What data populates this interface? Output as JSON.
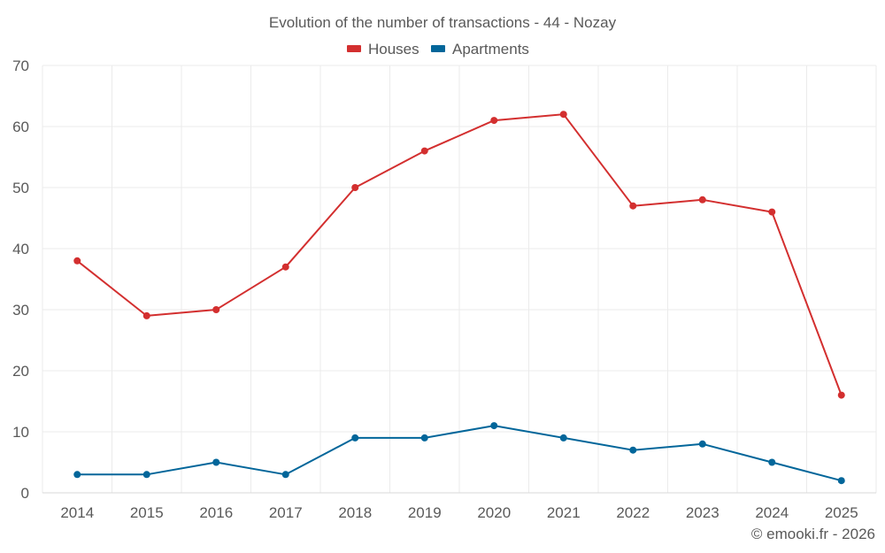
{
  "chart_data": {
    "type": "line",
    "title": "Evolution of the number of transactions - 44 - Nozay",
    "categories": [
      "2014",
      "2015",
      "2016",
      "2017",
      "2018",
      "2019",
      "2020",
      "2021",
      "2022",
      "2023",
      "2024",
      "2025"
    ],
    "series": [
      {
        "name": "Houses",
        "color": "#d32f2f",
        "values": [
          38,
          29,
          30,
          37,
          50,
          56,
          61,
          62,
          47,
          48,
          46,
          16
        ]
      },
      {
        "name": "Apartments",
        "color": "#02669a",
        "values": [
          3,
          3,
          5,
          3,
          9,
          9,
          11,
          9,
          7,
          8,
          5,
          2
        ]
      }
    ],
    "ylim": [
      0,
      70
    ],
    "yticks": [
      0,
      10,
      20,
      30,
      40,
      50,
      60,
      70
    ],
    "ytick_labels": [
      "0",
      "10",
      "20",
      "30",
      "40",
      "50",
      "60",
      "70"
    ],
    "xlabel": "",
    "ylabel": "",
    "grid": true,
    "legend_position": "top-center"
  },
  "credit": "© emooki.fr - 2026"
}
